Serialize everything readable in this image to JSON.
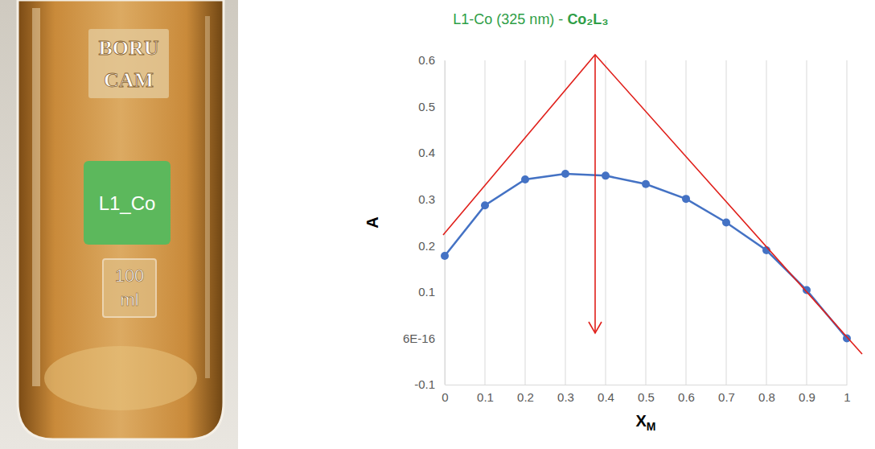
{
  "chart_data": {
    "type": "line",
    "title": "L1-Co (325 nm) - Co₂L₃",
    "x_label": "XM",
    "y_label": "A",
    "x": [
      0,
      0.1,
      0.2,
      0.3,
      0.4,
      0.5,
      0.6,
      0.7,
      0.8,
      0.9,
      1
    ],
    "values": [
      0.178,
      0.287,
      0.343,
      0.355,
      0.351,
      0.333,
      0.301,
      0.25,
      0.19,
      0.104,
      0
    ],
    "color": "#4472c4",
    "marker": "circle",
    "line_style": "solid",
    "xlim": [
      0,
      1
    ],
    "xticks": [
      0,
      0.1,
      0.2,
      0.3,
      0.4,
      0.5,
      0.6,
      0.7,
      0.8,
      0.9,
      1
    ],
    "ylim": [
      -0.1,
      0.6
    ],
    "yticks": [
      -0.1,
      {
        "value": 6e-16,
        "label": "6E-16"
      },
      0.1,
      0.2,
      0.3,
      0.4,
      0.5,
      0.6
    ],
    "grid": "x"
  },
  "photo": {
    "brand": [
      "BORU",
      "CAM"
    ],
    "label": "L1_Co",
    "volume": [
      "100",
      "ml"
    ]
  }
}
